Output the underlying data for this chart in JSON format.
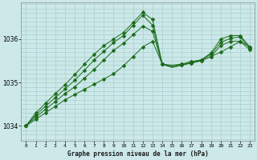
{
  "title": "Graphe pression niveau de la mer (hPa)",
  "background_color": "#cce8e8",
  "grid_color": "#aacfcf",
  "line_color": "#1a6b1a",
  "markersize": 2.5,
  "xlim": [
    -0.5,
    23.5
  ],
  "ylim": [
    1033.65,
    1036.85
  ],
  "yticks": [
    1034,
    1035,
    1036
  ],
  "xticks": [
    0,
    1,
    2,
    3,
    4,
    5,
    6,
    7,
    8,
    9,
    10,
    11,
    12,
    13,
    14,
    15,
    16,
    17,
    18,
    19,
    20,
    21,
    22,
    23
  ],
  "series": [
    {
      "x": [
        0,
        1,
        2,
        3,
        4,
        5,
        6,
        7,
        8,
        9,
        10,
        11,
        12,
        13,
        14,
        15,
        16,
        17,
        18,
        19,
        20,
        21,
        22,
        23
      ],
      "y": [
        1034.0,
        1034.15,
        1034.3,
        1034.45,
        1034.6,
        1034.72,
        1034.84,
        1034.96,
        1035.08,
        1035.2,
        1035.38,
        1035.6,
        1035.82,
        1035.95,
        1035.42,
        1035.35,
        1035.4,
        1035.45,
        1035.5,
        1035.6,
        1035.7,
        1035.82,
        1035.95,
        1035.82
      ]
    },
    {
      "x": [
        0,
        1,
        2,
        3,
        4,
        5,
        6,
        7,
        8,
        9,
        10,
        11,
        12,
        13,
        14,
        15,
        16,
        17,
        18,
        19,
        20,
        21,
        22,
        23
      ],
      "y": [
        1034.0,
        1034.2,
        1034.38,
        1034.56,
        1034.74,
        1034.9,
        1035.1,
        1035.3,
        1035.52,
        1035.74,
        1035.9,
        1036.1,
        1036.3,
        1036.18,
        1035.42,
        1035.35,
        1035.4,
        1035.45,
        1035.5,
        1035.6,
        1035.85,
        1035.95,
        1035.95,
        1035.75
      ]
    },
    {
      "x": [
        0,
        1,
        2,
        3,
        4,
        5,
        6,
        7,
        8,
        9,
        10,
        11,
        12,
        13,
        14,
        15,
        16,
        17,
        18,
        19,
        20,
        21,
        22,
        23
      ],
      "y": [
        1034.0,
        1034.25,
        1034.45,
        1034.65,
        1034.85,
        1035.05,
        1035.28,
        1035.52,
        1035.72,
        1035.92,
        1036.08,
        1036.32,
        1036.55,
        1036.32,
        1035.42,
        1035.38,
        1035.42,
        1035.48,
        1035.52,
        1035.65,
        1035.92,
        1036.02,
        1036.05,
        1035.78
      ]
    },
    {
      "x": [
        0,
        1,
        2,
        3,
        4,
        5,
        6,
        7,
        8,
        9,
        10,
        11,
        12,
        13,
        14,
        15,
        16,
        17,
        18,
        19,
        20,
        21,
        22,
        23
      ],
      "y": [
        1034.0,
        1034.3,
        1034.52,
        1034.74,
        1034.95,
        1035.18,
        1035.42,
        1035.65,
        1035.85,
        1036.0,
        1036.15,
        1036.38,
        1036.62,
        1036.45,
        1035.42,
        1035.4,
        1035.42,
        1035.48,
        1035.52,
        1035.68,
        1036.0,
        1036.08,
        1036.08,
        1035.82
      ]
    }
  ]
}
